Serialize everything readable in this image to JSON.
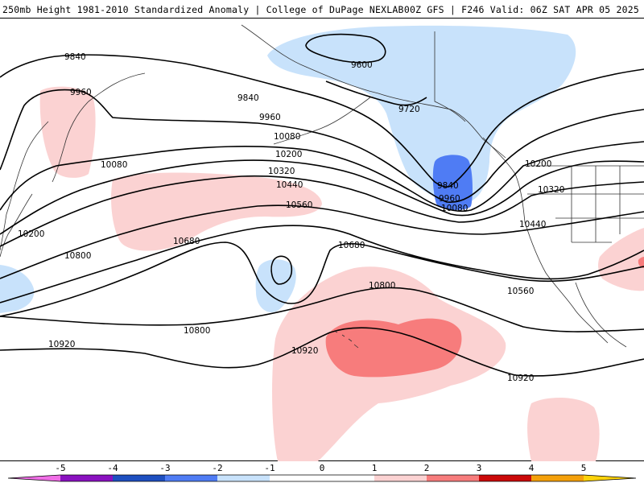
{
  "header": {
    "title": "250mb Height 1981-2010 Standardized Anomaly | College of DuPage NEXLAB",
    "run_info": "00Z GFS | F246 Valid: 06Z SAT APR 05 2025"
  },
  "colors": {
    "neg_5": "#f06ee6",
    "neg_4": "#8a11c0",
    "neg_3": "#1e4fc0",
    "neg_2": "#4f7cf4",
    "neg_1": "#c8e2fb",
    "neutral": "#ffffff",
    "pos_1": "#fbd2d2",
    "pos_2": "#f77c7c",
    "pos_3": "#cb0909",
    "pos_4": "#f4a00a",
    "pos_5": "#fcd20a"
  },
  "colorbar": {
    "ticks": [
      "-5",
      "-4",
      "-3",
      "-2",
      "-1",
      "0",
      "1",
      "2",
      "3",
      "4",
      "5"
    ]
  },
  "contour_labels": [
    "9840",
    "9960",
    "9840",
    "9600",
    "9720",
    "9960",
    "10080",
    "10200",
    "10080",
    "10320",
    "10440",
    "10560",
    "10200",
    "9840",
    "9960",
    "10080",
    "10200",
    "10320",
    "10440",
    "10680",
    "10680",
    "10800",
    "10560",
    "10800",
    "10920",
    "10920",
    "10920"
  ]
}
